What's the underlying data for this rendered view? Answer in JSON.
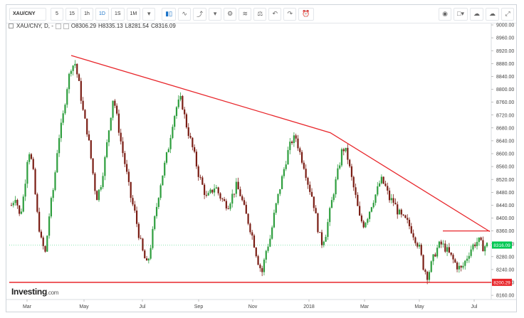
{
  "toolbar": {
    "symbol": "XAU/CNY",
    "intervals": [
      "5",
      "15",
      "1h",
      "1D",
      "1S",
      "1M"
    ],
    "active_interval": "1D",
    "icons": [
      "dropdown-icon",
      "candles-icon",
      "indicators-icon",
      "drawing-icon",
      "dropdown-icon",
      "settings-icon",
      "compare-icon",
      "scale-icon",
      "undo-icon",
      "redo-icon",
      "add-alert-icon",
      "camera-icon",
      "color-icon",
      "cloud-load-icon",
      "cloud-save-icon",
      "fullscreen-icon"
    ]
  },
  "legend": {
    "title": "XAU/CNY, D, -",
    "open": "O8306.29",
    "high": "H8335.13",
    "low": "L8281.54",
    "close": "C8316.09"
  },
  "logo": {
    "brand": "Investing",
    "suffix": ".com"
  },
  "colors": {
    "up": "#2e9e3e",
    "down": "#7a1d14",
    "trendline": "#e8262b",
    "current_price": "#00c853",
    "support": "#e8262b"
  },
  "chart_data": {
    "type": "candlestick",
    "symbol": "XAU/CNY",
    "interval": "D",
    "ohlc_last": {
      "open": 8306.29,
      "high": 8335.13,
      "low": 8281.54,
      "close": 8316.09
    },
    "ylim": [
      8120,
      9000
    ],
    "y_ticks": [
      "9000.00",
      "8960.00",
      "8920.00",
      "8880.00",
      "8840.00",
      "8800.00",
      "8760.00",
      "8720.00",
      "8680.00",
      "8640.00",
      "8600.00",
      "8560.00",
      "8520.00",
      "8480.00",
      "8440.00",
      "8400.00",
      "8360.00",
      "8320.00",
      "8280.00",
      "8240.00",
      "8200.00",
      "8160.00"
    ],
    "x_ticks": [
      "Mar",
      "May",
      "Jul",
      "Sep",
      "Nov",
      "2018",
      "Mar",
      "May",
      "Jul"
    ],
    "current_price_label": "8316.09",
    "support_label": "8200.29",
    "support_level": 8200.29,
    "trendlines": [
      {
        "name": "descending resistance",
        "points": [
          [
            "Apr 2017",
            8905
          ],
          [
            "Dec 2017",
            8665
          ],
          [
            "Jul 2018",
            8360
          ]
        ]
      },
      {
        "name": "horizontal resistance",
        "points": [
          [
            "Jun 2018",
            8360
          ],
          [
            "Jul 2018",
            8360
          ]
        ]
      }
    ],
    "close_path": [
      8440,
      8470,
      8400,
      8480,
      8620,
      8560,
      8420,
      8330,
      8290,
      8420,
      8500,
      8640,
      8700,
      8800,
      8870,
      8880,
      8810,
      8720,
      8660,
      8560,
      8460,
      8500,
      8580,
      8680,
      8780,
      8700,
      8620,
      8550,
      8470,
      8420,
      8350,
      8290,
      8250,
      8330,
      8420,
      8500,
      8560,
      8620,
      8700,
      8750,
      8770,
      8700,
      8650,
      8600,
      8540,
      8500,
      8460,
      8480,
      8500,
      8470,
      8450,
      8440,
      8470,
      8500,
      8470,
      8420,
      8380,
      8330,
      8270,
      8230,
      8300,
      8340,
      8420,
      8480,
      8540,
      8600,
      8640,
      8650,
      8600,
      8560,
      8500,
      8460,
      8380,
      8320,
      8350,
      8420,
      8490,
      8550,
      8620,
      8600,
      8530,
      8470,
      8400,
      8380,
      8410,
      8450,
      8480,
      8520,
      8500,
      8460,
      8450,
      8420,
      8400,
      8390,
      8370,
      8340,
      8310,
      8250,
      8220,
      8260,
      8300,
      8320,
      8310,
      8290,
      8270,
      8250,
      8240,
      8270,
      8300,
      8320,
      8330,
      8310,
      8316
    ]
  }
}
